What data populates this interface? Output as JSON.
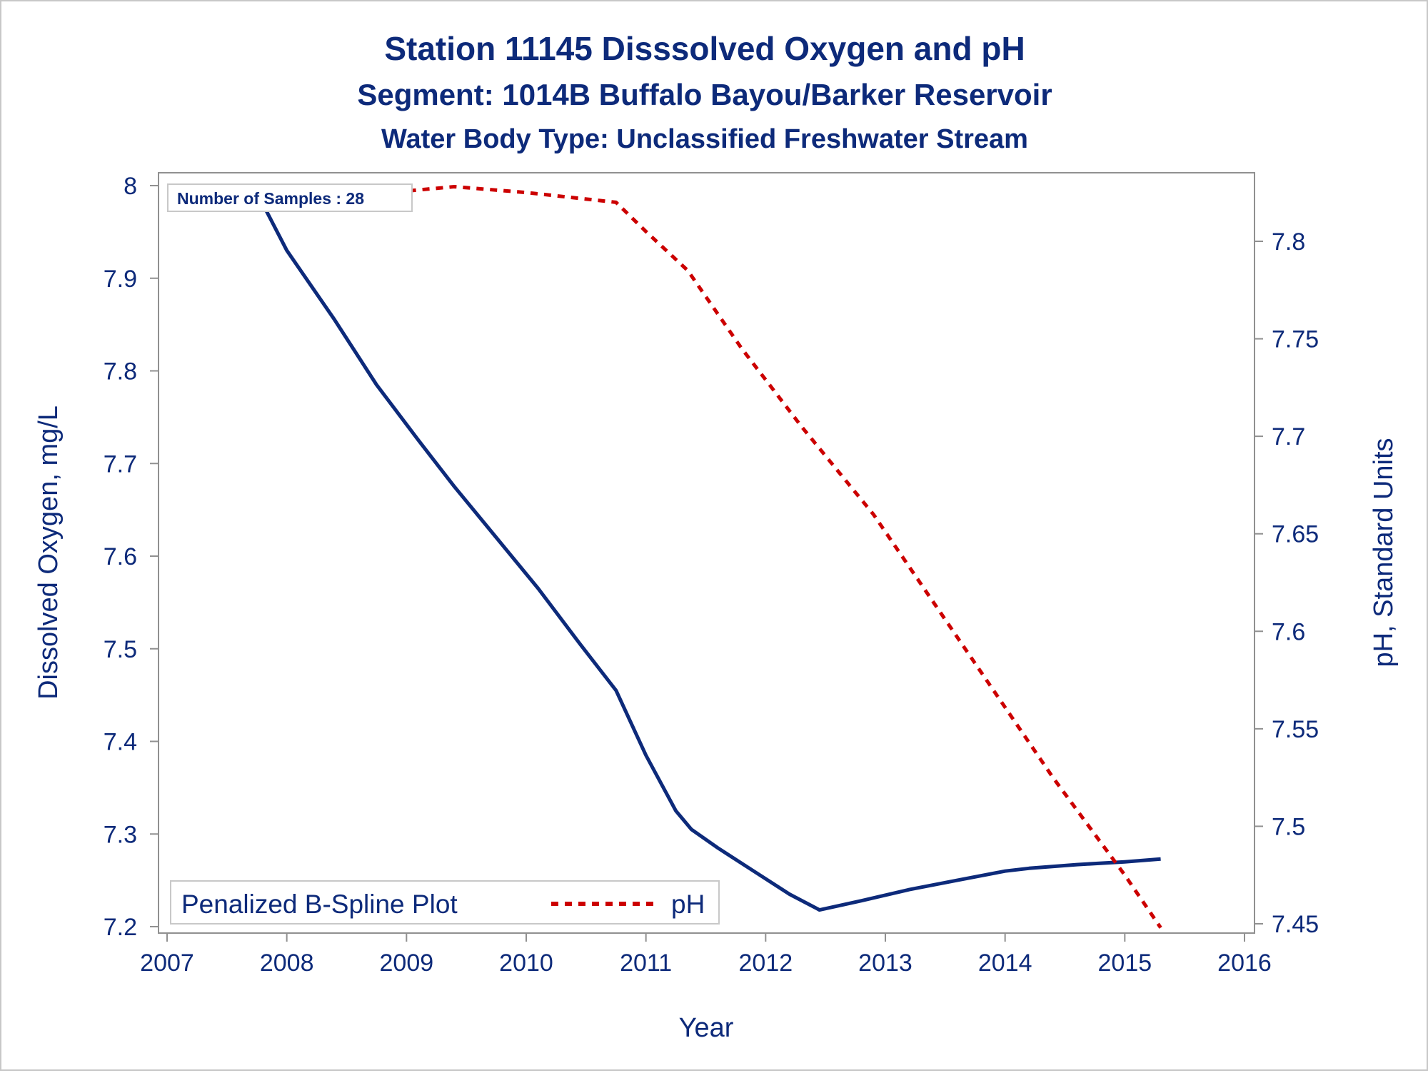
{
  "chart_data": {
    "type": "line",
    "title": "Station 11145   Disssolved Oxygen and pH",
    "subtitle": "Segment: 1014B  Buffalo Bayou/Barker Reservoir",
    "subtitle2": "Water Body Type: Unclassified Freshwater Stream",
    "xlabel": "Year",
    "ylabel": "Dissolved Oxygen, mg/L",
    "y2label": "pH, Standard Units",
    "xlim": [
      2007,
      2016
    ],
    "ylim": [
      7.2,
      8.0
    ],
    "y2lim": [
      7.4465,
      7.8285
    ],
    "x_ticks": [
      "2007",
      "2008",
      "2009",
      "2010",
      "2011",
      "2012",
      "2013",
      "2014",
      "2015",
      "2016"
    ],
    "y_ticks": [
      "7.2",
      "7.3",
      "7.4",
      "7.5",
      "7.6",
      "7.7",
      "7.8",
      "7.9",
      "8"
    ],
    "y2_ticks": [
      "7.45",
      "7.5",
      "7.55",
      "7.6",
      "7.65",
      "7.7",
      "7.75",
      "7.8"
    ],
    "inset_text": "Number of Samples : 28",
    "legend_position": "bottom-left",
    "grid": false,
    "series": [
      {
        "name": "Penalized B-Spline Plot",
        "axis": "left",
        "color": "#0d2a7a",
        "style": "solid",
        "x": [
          2007.78,
          2008.0,
          2008.4,
          2008.75,
          2009.1,
          2009.4,
          2009.75,
          2010.1,
          2010.45,
          2010.75,
          2011.0,
          2011.25,
          2011.38,
          2011.6,
          2011.9,
          2012.2,
          2012.45,
          2012.8,
          2013.2,
          2013.6,
          2014.0,
          2014.2,
          2014.6,
          2015.0,
          2015.3
        ],
        "y": [
          7.985,
          7.93,
          7.855,
          7.785,
          7.725,
          7.675,
          7.62,
          7.565,
          7.505,
          7.455,
          7.385,
          7.325,
          7.305,
          7.285,
          7.26,
          7.235,
          7.218,
          7.228,
          7.24,
          7.25,
          7.26,
          7.263,
          7.267,
          7.27,
          7.273
        ]
      },
      {
        "name": "pH",
        "axis": "right",
        "color": "#cc0000",
        "style": "dashed",
        "x": [
          2007.78,
          2008.5,
          2009.4,
          2010.0,
          2010.75,
          2011.0,
          2011.35,
          2011.8,
          2012.3,
          2012.9,
          2013.4,
          2013.9,
          2014.4,
          2015.0,
          2015.3
        ],
        "y": [
          7.818,
          7.823,
          7.828,
          7.825,
          7.82,
          7.805,
          7.785,
          7.745,
          7.705,
          7.66,
          7.615,
          7.57,
          7.525,
          7.475,
          7.448
        ]
      }
    ]
  }
}
